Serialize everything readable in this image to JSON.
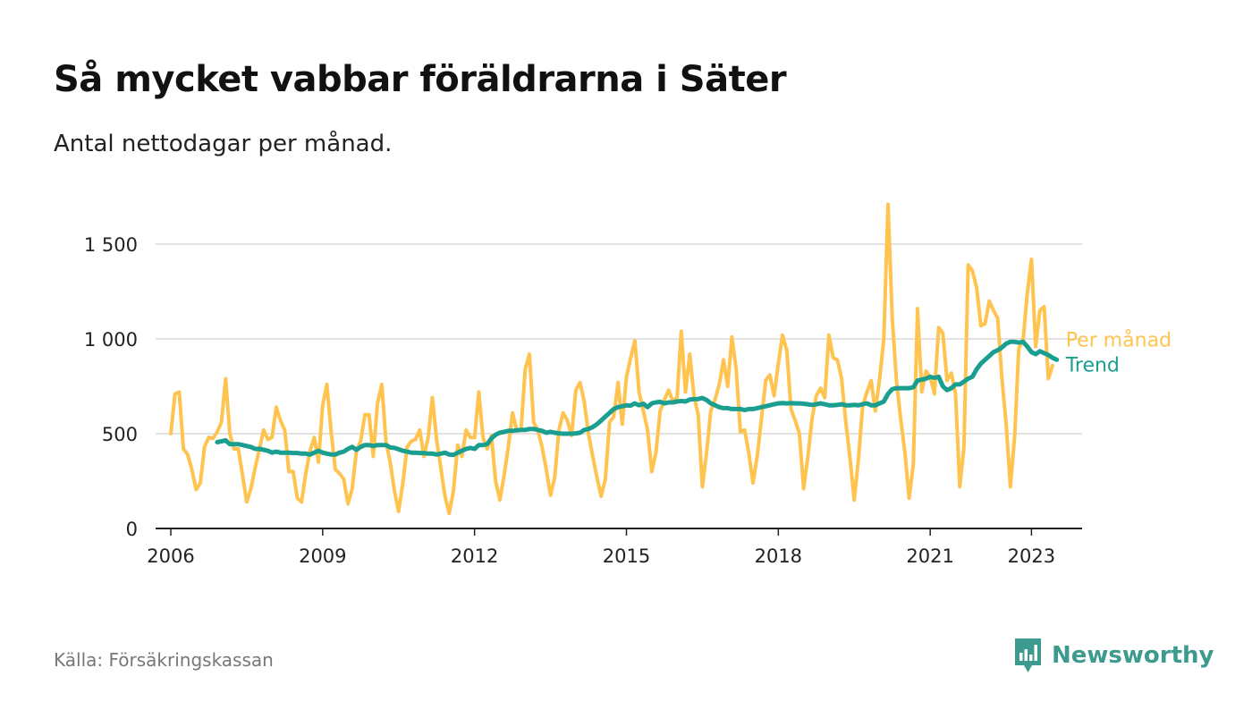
{
  "header": {
    "title": "Så mycket vabbar föräldrarna i Säter",
    "subtitle": "Antal nettodagar per månad."
  },
  "footer": {
    "source": "Källa: Försäkringskassan",
    "brand": "Newsworthy",
    "brand_color": "#3c9a8f"
  },
  "chart_data": {
    "type": "line",
    "ylim": [
      0,
      1750
    ],
    "xlim": [
      2005.7,
      2024.0
    ],
    "y_ticks": [
      {
        "value": 0,
        "label": "0"
      },
      {
        "value": 500,
        "label": "500"
      },
      {
        "value": 1000,
        "label": "1 000"
      },
      {
        "value": 1500,
        "label": "1 500"
      }
    ],
    "x_ticks": [
      {
        "value": 2006,
        "label": "2006"
      },
      {
        "value": 2009,
        "label": "2009"
      },
      {
        "value": 2012,
        "label": "2012"
      },
      {
        "value": 2015,
        "label": "2015"
      },
      {
        "value": 2018,
        "label": "2018"
      },
      {
        "value": 2021,
        "label": "2021"
      },
      {
        "value": 2023,
        "label": "2023"
      }
    ],
    "grid": true,
    "legend_placement": "right-end",
    "series": [
      {
        "name": "Per månad",
        "color": "#fec44f",
        "start": "2006-01",
        "values": [
          500,
          710,
          720,
          420,
          390,
          310,
          205,
          240,
          430,
          480,
          475,
          510,
          560,
          790,
          500,
          420,
          420,
          280,
          140,
          210,
          320,
          420,
          520,
          470,
          480,
          640,
          570,
          520,
          300,
          300,
          160,
          140,
          290,
          410,
          480,
          350,
          650,
          760,
          510,
          310,
          290,
          260,
          130,
          210,
          410,
          460,
          600,
          600,
          380,
          660,
          760,
          460,
          350,
          200,
          90,
          240,
          430,
          460,
          470,
          520,
          380,
          480,
          690,
          470,
          320,
          170,
          80,
          200,
          440,
          380,
          520,
          480,
          480,
          720,
          480,
          420,
          490,
          250,
          150,
          280,
          430,
          610,
          520,
          520,
          840,
          920,
          560,
          520,
          430,
          310,
          175,
          270,
          520,
          610,
          570,
          490,
          730,
          770,
          670,
          500,
          380,
          270,
          170,
          260,
          560,
          590,
          770,
          550,
          800,
          900,
          990,
          720,
          620,
          520,
          300,
          400,
          620,
          680,
          730,
          670,
          690,
          1040,
          720,
          920,
          700,
          600,
          220,
          400,
          620,
          680,
          760,
          890,
          750,
          1010,
          840,
          510,
          520,
          400,
          240,
          380,
          580,
          780,
          810,
          700,
          870,
          1020,
          940,
          630,
          570,
          500,
          210,
          380,
          580,
          700,
          740,
          690,
          1020,
          900,
          890,
          790,
          560,
          370,
          150,
          370,
          650,
          720,
          780,
          620,
          790,
          1000,
          1710,
          1110,
          780,
          580,
          400,
          160,
          340,
          1160,
          720,
          830,
          800,
          710,
          1060,
          1030,
          780,
          820,
          710,
          220,
          430,
          1390,
          1360,
          1270,
          1070,
          1080,
          1200,
          1150,
          1110,
          790,
          550,
          220,
          480,
          950,
          990,
          1240,
          1420,
          960,
          1150,
          1170,
          790,
          860
        ]
      },
      {
        "name": "Trend",
        "color": "#1a9e8f",
        "start": "2006-12",
        "values": [
          455,
          460,
          465,
          445,
          445,
          445,
          440,
          435,
          430,
          420,
          420,
          415,
          410,
          400,
          405,
          400,
          400,
          400,
          398,
          398,
          395,
          395,
          390,
          400,
          410,
          400,
          395,
          390,
          390,
          400,
          405,
          420,
          430,
          415,
          430,
          440,
          440,
          435,
          440,
          440,
          440,
          428,
          425,
          418,
          410,
          405,
          400,
          400,
          398,
          398,
          395,
          395,
          390,
          395,
          400,
          390,
          388,
          400,
          410,
          420,
          425,
          420,
          440,
          440,
          445,
          475,
          495,
          505,
          510,
          515,
          515,
          518,
          520,
          520,
          525,
          525,
          520,
          515,
          505,
          510,
          505,
          502,
          500,
          500,
          500,
          502,
          505,
          520,
          525,
          535,
          550,
          570,
          590,
          610,
          630,
          640,
          645,
          650,
          648,
          660,
          650,
          658,
          640,
          660,
          665,
          668,
          660,
          665,
          665,
          670,
          672,
          670,
          680,
          682,
          683,
          688,
          678,
          660,
          650,
          640,
          635,
          635,
          630,
          630,
          630,
          625,
          630,
          630,
          635,
          640,
          645,
          650,
          655,
          660,
          662,
          660,
          662,
          660,
          660,
          658,
          655,
          652,
          655,
          660,
          655,
          650,
          650,
          652,
          655,
          650,
          650,
          652,
          650,
          655,
          660,
          650,
          650,
          660,
          670,
          710,
          735,
          740,
          740,
          740,
          740,
          745,
          780,
          785,
          790,
          800,
          795,
          800,
          750,
          730,
          740,
          760,
          760,
          775,
          790,
          800,
          840,
          870,
          890,
          910,
          930,
          940,
          955,
          975,
          985,
          985,
          980,
          985,
          960,
          930,
          920,
          935,
          925,
          915,
          900,
          890
        ]
      }
    ]
  }
}
